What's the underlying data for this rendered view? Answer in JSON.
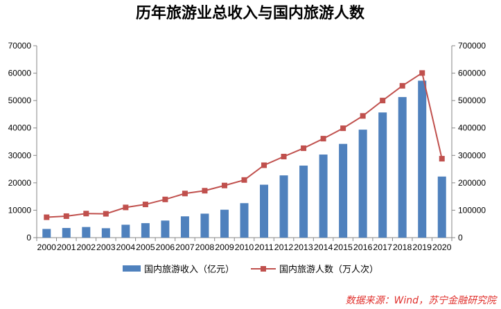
{
  "chart_data": {
    "type": "bar+line",
    "title": "历年旅游业总收入与国内旅游人数",
    "categories": [
      "2000",
      "2001",
      "2002",
      "2003",
      "2004",
      "2005",
      "2006",
      "2007",
      "2008",
      "2009",
      "2010",
      "2011",
      "2012",
      "2013",
      "2014",
      "2015",
      "2016",
      "2017",
      "2018",
      "2019",
      "2020"
    ],
    "series": [
      {
        "name": "国内旅游收入（亿元）",
        "type": "bar",
        "axis": "left",
        "color": "#4f81bd",
        "values": [
          3175,
          3522,
          3878,
          3442,
          4711,
          5286,
          6230,
          7771,
          8749,
          10184,
          12580,
          19305,
          22706,
          26276,
          30312,
          34195,
          39390,
          45661,
          51278,
          57251,
          22286
        ]
      },
      {
        "name": "国内旅游人数（万人次）",
        "type": "line",
        "axis": "right",
        "color": "#c0504d",
        "values": [
          74400,
          78400,
          87800,
          87000,
          110200,
          121200,
          139400,
          161000,
          171200,
          190200,
          210300,
          264100,
          295700,
          326200,
          361100,
          399000,
          444000,
          500100,
          553900,
          600600,
          287900
        ]
      }
    ],
    "y_left": {
      "min": 0,
      "max": 70000,
      "step": 10000
    },
    "y_right": {
      "min": 0,
      "max": 700000,
      "step": 100000
    },
    "grid": false,
    "legend_position": "bottom",
    "source": "数据来源：Wind，苏宁金融研究院"
  }
}
